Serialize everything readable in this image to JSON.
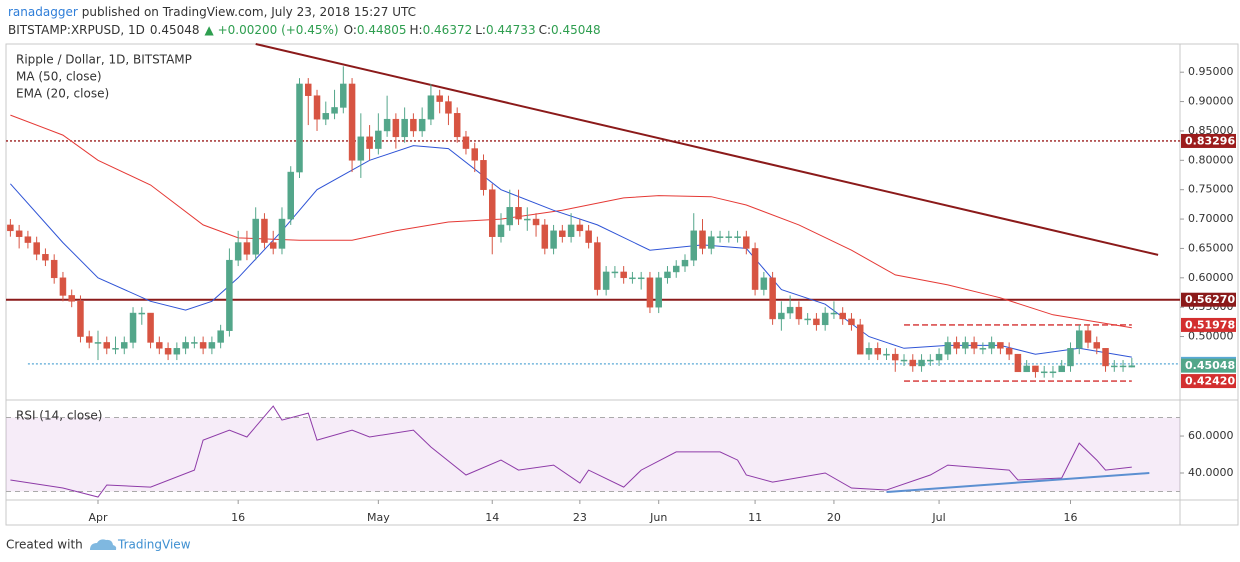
{
  "header": {
    "author": "ranadagger",
    "published": "published on TradingView.com, July 23, 2018 15:27 UTC",
    "symbol": "BITSTAMP:XRPUSD, 1D",
    "change": "▲ +0.00200 (+0.45%)",
    "o": "O:",
    "h": "H:",
    "l": "L:",
    "c": "C:"
  },
  "footer": {
    "created": "Created with",
    "brand": "TradingView"
  },
  "chart_data": {
    "type": "candlestick",
    "title": "Ripple / Dollar, 1D, BITSTAMP",
    "up_color": "#53a68a",
    "down_color": "#d75442",
    "ohlc": [
      [
        0.69,
        0.7,
        0.67,
        0.68
      ],
      [
        0.68,
        0.69,
        0.65,
        0.67
      ],
      [
        0.67,
        0.68,
        0.65,
        0.66
      ],
      [
        0.66,
        0.67,
        0.63,
        0.64
      ],
      [
        0.64,
        0.65,
        0.62,
        0.63
      ],
      [
        0.63,
        0.64,
        0.59,
        0.6
      ],
      [
        0.6,
        0.61,
        0.56,
        0.57
      ],
      [
        0.57,
        0.58,
        0.55,
        0.56
      ],
      [
        0.56,
        0.57,
        0.49,
        0.5
      ],
      [
        0.5,
        0.51,
        0.48,
        0.49
      ],
      [
        0.49,
        0.51,
        0.46,
        0.49
      ],
      [
        0.49,
        0.5,
        0.47,
        0.48
      ],
      [
        0.48,
        0.5,
        0.47,
        0.48
      ],
      [
        0.48,
        0.5,
        0.47,
        0.49
      ],
      [
        0.49,
        0.55,
        0.48,
        0.54
      ],
      [
        0.54,
        0.55,
        0.52,
        0.54
      ],
      [
        0.54,
        0.54,
        0.48,
        0.49
      ],
      [
        0.49,
        0.5,
        0.47,
        0.48
      ],
      [
        0.48,
        0.49,
        0.46,
        0.47
      ],
      [
        0.47,
        0.49,
        0.46,
        0.48
      ],
      [
        0.48,
        0.5,
        0.47,
        0.49
      ],
      [
        0.49,
        0.5,
        0.48,
        0.49
      ],
      [
        0.49,
        0.5,
        0.47,
        0.48
      ],
      [
        0.48,
        0.5,
        0.47,
        0.49
      ],
      [
        0.49,
        0.52,
        0.48,
        0.51
      ],
      [
        0.51,
        0.65,
        0.5,
        0.63
      ],
      [
        0.63,
        0.68,
        0.62,
        0.66
      ],
      [
        0.66,
        0.68,
        0.63,
        0.64
      ],
      [
        0.64,
        0.72,
        0.63,
        0.7
      ],
      [
        0.7,
        0.71,
        0.65,
        0.66
      ],
      [
        0.66,
        0.68,
        0.64,
        0.65
      ],
      [
        0.65,
        0.72,
        0.64,
        0.7
      ],
      [
        0.7,
        0.79,
        0.69,
        0.78
      ],
      [
        0.78,
        0.94,
        0.77,
        0.93
      ],
      [
        0.93,
        0.94,
        0.86,
        0.91
      ],
      [
        0.91,
        0.92,
        0.85,
        0.87
      ],
      [
        0.87,
        0.9,
        0.86,
        0.88
      ],
      [
        0.88,
        0.92,
        0.87,
        0.89
      ],
      [
        0.89,
        0.96,
        0.88,
        0.93
      ],
      [
        0.93,
        0.94,
        0.78,
        0.8
      ],
      [
        0.8,
        0.88,
        0.77,
        0.84
      ],
      [
        0.84,
        0.86,
        0.8,
        0.82
      ],
      [
        0.82,
        0.88,
        0.81,
        0.85
      ],
      [
        0.85,
        0.91,
        0.84,
        0.87
      ],
      [
        0.87,
        0.88,
        0.82,
        0.84
      ],
      [
        0.84,
        0.89,
        0.83,
        0.87
      ],
      [
        0.87,
        0.88,
        0.84,
        0.85
      ],
      [
        0.85,
        0.89,
        0.84,
        0.87
      ],
      [
        0.87,
        0.93,
        0.86,
        0.91
      ],
      [
        0.91,
        0.92,
        0.88,
        0.9
      ],
      [
        0.9,
        0.91,
        0.86,
        0.88
      ],
      [
        0.88,
        0.89,
        0.83,
        0.84
      ],
      [
        0.84,
        0.85,
        0.81,
        0.82
      ],
      [
        0.82,
        0.83,
        0.78,
        0.8
      ],
      [
        0.8,
        0.81,
        0.74,
        0.75
      ],
      [
        0.75,
        0.76,
        0.64,
        0.67
      ],
      [
        0.67,
        0.71,
        0.66,
        0.69
      ],
      [
        0.69,
        0.75,
        0.68,
        0.72
      ],
      [
        0.72,
        0.75,
        0.69,
        0.7
      ],
      [
        0.7,
        0.72,
        0.68,
        0.7
      ],
      [
        0.7,
        0.71,
        0.67,
        0.69
      ],
      [
        0.69,
        0.7,
        0.64,
        0.65
      ],
      [
        0.65,
        0.69,
        0.64,
        0.68
      ],
      [
        0.68,
        0.69,
        0.66,
        0.67
      ],
      [
        0.67,
        0.71,
        0.66,
        0.69
      ],
      [
        0.69,
        0.7,
        0.67,
        0.68
      ],
      [
        0.68,
        0.69,
        0.65,
        0.66
      ],
      [
        0.66,
        0.67,
        0.57,
        0.58
      ],
      [
        0.58,
        0.62,
        0.57,
        0.61
      ],
      [
        0.61,
        0.62,
        0.6,
        0.61
      ],
      [
        0.61,
        0.62,
        0.59,
        0.6
      ],
      [
        0.6,
        0.61,
        0.59,
        0.6
      ],
      [
        0.6,
        0.61,
        0.58,
        0.6
      ],
      [
        0.6,
        0.61,
        0.54,
        0.55
      ],
      [
        0.55,
        0.61,
        0.54,
        0.6
      ],
      [
        0.6,
        0.62,
        0.59,
        0.61
      ],
      [
        0.61,
        0.63,
        0.6,
        0.62
      ],
      [
        0.62,
        0.64,
        0.61,
        0.63
      ],
      [
        0.63,
        0.71,
        0.62,
        0.68
      ],
      [
        0.68,
        0.7,
        0.64,
        0.65
      ],
      [
        0.65,
        0.68,
        0.64,
        0.67
      ],
      [
        0.67,
        0.68,
        0.66,
        0.67
      ],
      [
        0.67,
        0.68,
        0.66,
        0.67
      ],
      [
        0.67,
        0.68,
        0.66,
        0.67
      ],
      [
        0.67,
        0.68,
        0.64,
        0.65
      ],
      [
        0.65,
        0.66,
        0.57,
        0.58
      ],
      [
        0.58,
        0.61,
        0.57,
        0.6
      ],
      [
        0.6,
        0.61,
        0.52,
        0.53
      ],
      [
        0.53,
        0.56,
        0.51,
        0.54
      ],
      [
        0.54,
        0.57,
        0.53,
        0.55
      ],
      [
        0.55,
        0.56,
        0.52,
        0.53
      ],
      [
        0.53,
        0.54,
        0.52,
        0.53
      ],
      [
        0.53,
        0.54,
        0.51,
        0.52
      ],
      [
        0.52,
        0.55,
        0.51,
        0.54
      ],
      [
        0.54,
        0.56,
        0.53,
        0.54
      ],
      [
        0.54,
        0.55,
        0.52,
        0.53
      ],
      [
        0.53,
        0.54,
        0.51,
        0.52
      ],
      [
        0.52,
        0.53,
        0.47,
        0.47
      ],
      [
        0.47,
        0.49,
        0.46,
        0.48
      ],
      [
        0.48,
        0.49,
        0.46,
        0.47
      ],
      [
        0.47,
        0.48,
        0.46,
        0.47
      ],
      [
        0.47,
        0.48,
        0.44,
        0.46
      ],
      [
        0.46,
        0.47,
        0.45,
        0.46
      ],
      [
        0.46,
        0.47,
        0.44,
        0.45
      ],
      [
        0.45,
        0.47,
        0.44,
        0.46
      ],
      [
        0.46,
        0.47,
        0.45,
        0.46
      ],
      [
        0.46,
        0.48,
        0.45,
        0.47
      ],
      [
        0.47,
        0.5,
        0.46,
        0.49
      ],
      [
        0.49,
        0.5,
        0.47,
        0.48
      ],
      [
        0.48,
        0.5,
        0.47,
        0.49
      ],
      [
        0.49,
        0.5,
        0.47,
        0.48
      ],
      [
        0.48,
        0.49,
        0.47,
        0.48
      ],
      [
        0.48,
        0.5,
        0.47,
        0.49
      ],
      [
        0.49,
        0.49,
        0.47,
        0.48
      ],
      [
        0.48,
        0.49,
        0.46,
        0.47
      ],
      [
        0.47,
        0.47,
        0.44,
        0.44
      ],
      [
        0.44,
        0.46,
        0.44,
        0.45
      ],
      [
        0.45,
        0.45,
        0.43,
        0.44
      ],
      [
        0.44,
        0.45,
        0.43,
        0.44
      ],
      [
        0.44,
        0.45,
        0.43,
        0.44
      ],
      [
        0.44,
        0.46,
        0.44,
        0.45
      ],
      [
        0.45,
        0.49,
        0.44,
        0.48
      ],
      [
        0.48,
        0.52,
        0.47,
        0.51
      ],
      [
        0.51,
        0.52,
        0.48,
        0.49
      ],
      [
        0.49,
        0.5,
        0.47,
        0.48
      ],
      [
        0.48,
        0.48,
        0.44,
        0.45
      ],
      [
        0.45,
        0.46,
        0.44,
        0.45
      ],
      [
        0.45,
        0.46,
        0.44,
        0.45
      ],
      [
        0.44805,
        0.46372,
        0.44733,
        0.45048
      ]
    ],
    "xlim": [
      -0.5,
      133.5
    ],
    "xticks": [
      {
        "value": 10,
        "label": "Apr"
      },
      {
        "value": 26,
        "label": "16"
      },
      {
        "value": 42,
        "label": "May"
      },
      {
        "value": 55,
        "label": "14"
      },
      {
        "value": 65,
        "label": "23"
      },
      {
        "value": 74,
        "label": "Jun"
      },
      {
        "value": 85,
        "label": "11"
      },
      {
        "value": 94,
        "label": "20"
      },
      {
        "value": 106,
        "label": "Jul"
      },
      {
        "value": 121,
        "label": "16"
      }
    ],
    "ylim": [
      0.392,
      0.998
    ],
    "yticks": [
      {
        "value": 0.95,
        "label": "0.95000"
      },
      {
        "value": 0.9,
        "label": "0.90000"
      },
      {
        "value": 0.85,
        "label": "0.85000"
      },
      {
        "value": 0.8,
        "label": "0.80000"
      },
      {
        "value": 0.75,
        "label": "0.75000"
      },
      {
        "value": 0.7,
        "label": "0.70000"
      },
      {
        "value": 0.65,
        "label": "0.65000"
      },
      {
        "value": 0.6,
        "label": "0.60000"
      },
      {
        "value": 0.55,
        "label": "0.55000"
      },
      {
        "value": 0.5,
        "label": "0.50000"
      }
    ],
    "overlays": [
      {
        "name": "MA (50, close)",
        "color": "#e53935",
        "x": [
          0,
          6,
          10,
          16,
          22,
          26,
          33,
          39,
          44,
          50,
          56,
          63,
          70,
          74,
          80,
          84,
          90,
          96,
          101,
          107,
          113,
          119,
          128
        ],
        "values": [
          0.877,
          0.843,
          0.8,
          0.758,
          0.69,
          0.668,
          0.664,
          0.664,
          0.68,
          0.695,
          0.7,
          0.715,
          0.736,
          0.74,
          0.738,
          0.724,
          0.69,
          0.647,
          0.605,
          0.588,
          0.566,
          0.537,
          0.515
        ]
      },
      {
        "name": "EMA (20, close)",
        "color": "#2f54d6",
        "x": [
          0,
          6,
          10,
          16,
          20,
          23,
          26,
          31,
          35,
          41,
          46,
          50,
          56,
          62,
          67,
          73,
          79,
          84,
          88,
          93,
          98,
          102,
          107,
          113,
          117,
          122,
          128
        ],
        "values": [
          0.76,
          0.66,
          0.6,
          0.56,
          0.545,
          0.56,
          0.6,
          0.68,
          0.75,
          0.8,
          0.825,
          0.82,
          0.75,
          0.715,
          0.69,
          0.647,
          0.656,
          0.65,
          0.58,
          0.555,
          0.5,
          0.48,
          0.485,
          0.485,
          0.47,
          0.48,
          0.465
        ]
      }
    ],
    "price_lines": [
      {
        "value": 0.83296,
        "color": "#9b1c1c",
        "style": "dotted"
      },
      {
        "value": 0.5627,
        "label": "0.56270",
        "color": "#8b1a1a",
        "style": "solid"
      },
      {
        "value": 0.51978,
        "color": "#d32f2f",
        "style": "dashed",
        "x": [
          102,
          128
        ]
      },
      {
        "value": 0.45351,
        "color": "#5aa9d6",
        "style": "dotted",
        "x": [
          2,
          133.5
        ]
      },
      {
        "value": 0.4242,
        "label": "0.42420",
        "color": "#d32f2f",
        "style": "dashed",
        "x": [
          102,
          128
        ]
      }
    ],
    "last_price_color": "#53a68a",
    "trendlines": [
      {
        "x": [
          28,
          131
        ],
        "y": [
          0.998,
          0.639
        ],
        "color": "#8b1a1a"
      }
    ],
    "rsi": {
      "title": "RSI (14, close)",
      "color": "#8e3ba8",
      "band": [
        30,
        70
      ],
      "ylim": [
        25.4,
        79.5
      ],
      "yticks": [
        {
          "value": 60,
          "label": "60.0000"
        },
        {
          "value": 40,
          "label": "40.0000"
        }
      ],
      "x": [
        0,
        6,
        10,
        11,
        16,
        21,
        22,
        25,
        27,
        30,
        31,
        34,
        35,
        39,
        41,
        46,
        48,
        52,
        56,
        58,
        62,
        65,
        66,
        70,
        72,
        76,
        81,
        83,
        84,
        87,
        93,
        96,
        100,
        105,
        107,
        114,
        115,
        120,
        122,
        124,
        125,
        128
      ],
      "values": [
        36.2,
        31.9,
        27.0,
        33.5,
        32.4,
        41.6,
        57.8,
        63.2,
        59.5,
        76.2,
        68.6,
        72.4,
        57.8,
        63.2,
        59.5,
        63.2,
        54.1,
        38.9,
        47.0,
        41.6,
        44.3,
        34.6,
        41.6,
        32.4,
        41.6,
        51.4,
        51.4,
        47.0,
        38.9,
        35.1,
        40.0,
        31.9,
        30.8,
        38.9,
        44.3,
        41.6,
        36.2,
        37.3,
        56.2,
        47.0,
        41.6,
        43.2
      ],
      "trendline": {
        "x": [
          100,
          130
        ],
        "y": [
          29.7,
          40.0
        ],
        "color": "#5b8fd1"
      }
    }
  }
}
